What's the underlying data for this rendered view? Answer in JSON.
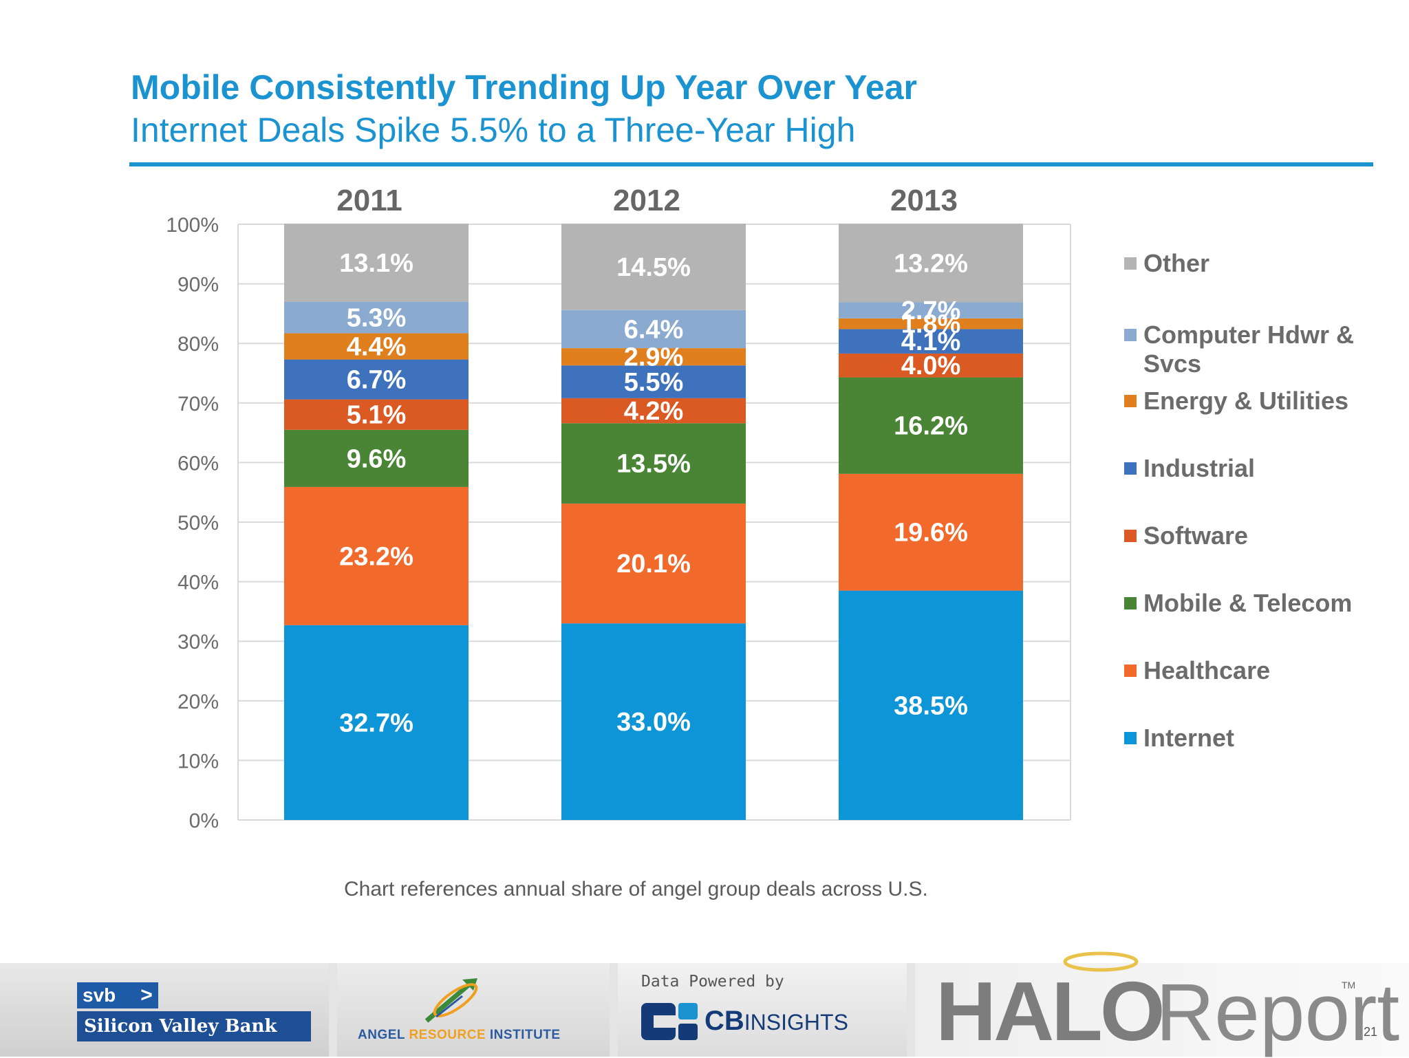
{
  "header": {
    "title": "Mobile Consistently Trending Up Year Over Year",
    "subtitle": "Internet Deals Spike 5.5% to a Three-Year High"
  },
  "colors": {
    "accent": "#1b93d1",
    "gridline": "#d9d9d9"
  },
  "chart_data": {
    "type": "bar",
    "stacked": true,
    "categories": [
      "2011",
      "2012",
      "2013"
    ],
    "ylim": [
      0,
      100
    ],
    "yticks": [
      "0%",
      "10%",
      "20%",
      "30%",
      "40%",
      "50%",
      "60%",
      "70%",
      "80%",
      "90%",
      "100%"
    ],
    "grid": true,
    "legend_position": "right",
    "series": [
      {
        "name": "Internet",
        "color": "#0d95d8",
        "values": [
          32.7,
          33.0,
          38.5
        ],
        "labels": [
          "32.7%",
          "33.0%",
          "38.5%"
        ]
      },
      {
        "name": "Healthcare",
        "color": "#f26a2b",
        "values": [
          23.2,
          20.1,
          19.6
        ],
        "labels": [
          "23.2%",
          "20.1%",
          "19.6%"
        ]
      },
      {
        "name": "Mobile & Telecom",
        "color": "#4a8535",
        "values": [
          9.6,
          13.5,
          16.2
        ],
        "labels": [
          "9.6%",
          "13.5%",
          "16.2%"
        ]
      },
      {
        "name": "Software",
        "color": "#db5a24",
        "values": [
          5.1,
          4.2,
          4.0
        ],
        "labels": [
          "5.1%",
          "4.2%",
          "4.0%"
        ]
      },
      {
        "name": "Industrial",
        "color": "#3f72bd",
        "values": [
          6.7,
          5.5,
          4.1
        ],
        "labels": [
          "6.7%",
          "5.5%",
          "4.1%"
        ]
      },
      {
        "name": "Energy & Utilities",
        "color": "#e07f1e",
        "values": [
          4.4,
          2.9,
          1.8
        ],
        "labels": [
          "4.4%",
          "2.9%",
          "1.8%"
        ]
      },
      {
        "name": "Computer Hdwr & Svcs",
        "color": "#8aaad0",
        "values": [
          5.3,
          6.4,
          2.7
        ],
        "labels": [
          "5.3%",
          "6.4%",
          "2.7%"
        ]
      },
      {
        "name": "Other",
        "color": "#b4b4b4",
        "values": [
          13.1,
          14.5,
          13.2
        ],
        "labels": [
          "13.1%",
          "14.5%",
          "13.2%"
        ]
      }
    ]
  },
  "legend": {
    "items": [
      {
        "label": "Other",
        "color": "#b4b4b4"
      },
      {
        "label": "Computer Hdwr & Svcs",
        "color": "#8aaad0"
      },
      {
        "label": "Energy & Utilities",
        "color": "#e07f1e"
      },
      {
        "label": "Industrial",
        "color": "#3f72bd"
      },
      {
        "label": "Software",
        "color": "#db5a24"
      },
      {
        "label": "Mobile & Telecom",
        "color": "#4a8535"
      },
      {
        "label": "Healthcare",
        "color": "#f26a2b"
      },
      {
        "label": "Internet",
        "color": "#0d95d8"
      }
    ]
  },
  "footnote": "Chart references annual share of angel group deals across U.S.",
  "footer": {
    "svb_short": "svb",
    "svb_arrow": ">",
    "svb_name": "Silicon Valley Bank",
    "ari_left": "ANGEL ",
    "ari_mid": "RESOURCE",
    "ari_right": " INSTITUTE",
    "cb_powered": "Data Powered by",
    "cb_bold": "CB",
    "cb_light": "INSIGHTS",
    "halo_word": "HALO",
    "halo_report": "Report",
    "halo_tm": "TM"
  },
  "page_number": "21"
}
